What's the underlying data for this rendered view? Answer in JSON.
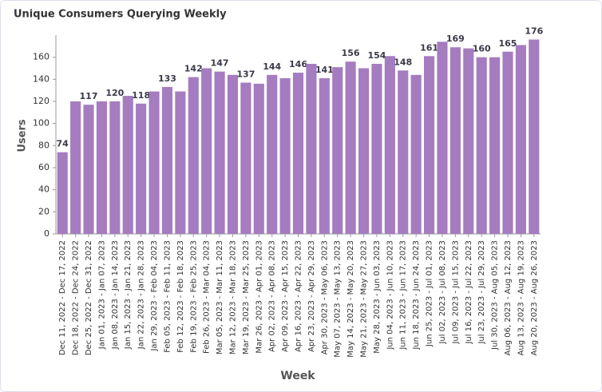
{
  "chart_data": {
    "type": "bar",
    "title": "Unique Consumers Querying Weekly",
    "x_label": "Week",
    "y_label": "Users",
    "categories": [
      "Dec 11, 2022 - Dec 17, 2022",
      "Dec 18, 2022 - Dec 24, 2022",
      "Dec 25, 2022 - Dec 31, 2022",
      "Jan 01, 2023 - Jan 07, 2023",
      "Jan 08, 2023 - Jan 14, 2023",
      "Jan 15, 2023 - Jan 21, 2023",
      "Jan 22, 2023 - Jan 28, 2023",
      "Jan 29, 2023 - Feb 04, 2023",
      "Feb 05, 2023 - Feb 11, 2023",
      "Feb 12, 2023 - Feb 18, 2023",
      "Feb 19, 2023 - Feb 25, 2023",
      "Feb 26, 2023 - Mar 04, 2023",
      "Mar 05, 2023 - Mar 11, 2023",
      "Mar 12, 2023 - Mar 18, 2023",
      "Mar 19, 2023 - Mar 25, 2023",
      "Mar 26, 2023 - Apr 01, 2023",
      "Apr 02, 2023 - Apr 08, 2023",
      "Apr 09, 2023 - Apr 15, 2023",
      "Apr 16, 2023 - Apr 22, 2023",
      "Apr 23, 2023 - Apr 29, 2023",
      "Apr 30, 2023 - May 06, 2023",
      "May 07, 2023 - May 13, 2023",
      "May 14, 2023 - May 20, 2023",
      "May 21, 2023 - May 27, 2023",
      "May 28, 2023 - Jun 03, 2023",
      "Jun 04, 2023 - Jun 10, 2023",
      "Jun 11, 2023 - Jun 17, 2023",
      "Jun 18, 2023 - Jun 24, 2023",
      "Jun 25, 2023 - Jul 01, 2023",
      "Jul 02, 2023 - Jul 08, 2023",
      "Jul 09, 2023 - Jul 15, 2023",
      "Jul 16, 2023 - Jul 22, 2023",
      "Jul 23, 2023 - Jul 29, 2023",
      "Jul 30, 2023 - Aug 05, 2023",
      "Aug 06, 2023 - Aug 12, 2023",
      "Aug 13, 2023 - Aug 19, 2023",
      "Aug 20, 2023 - Aug 26, 2023"
    ],
    "values": [
      74,
      120,
      117,
      120,
      120,
      125,
      118,
      129,
      133,
      129,
      142,
      150,
      147,
      144,
      137,
      136,
      144,
      141,
      146,
      154,
      141,
      151,
      156,
      150,
      154,
      161,
      148,
      144,
      161,
      174,
      169,
      168,
      160,
      160,
      165,
      171,
      176
    ],
    "color": "#a57cc0",
    "ylim": [
      0,
      180
    ],
    "yticks": [
      0,
      20,
      40,
      60,
      80,
      100,
      120,
      140,
      160
    ],
    "grid": false
  }
}
